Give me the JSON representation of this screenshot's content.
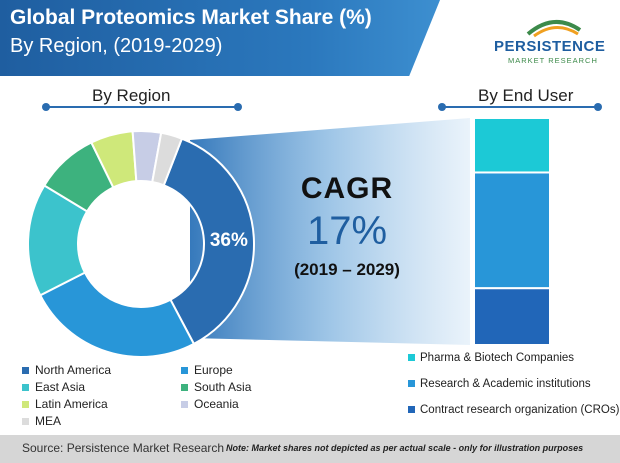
{
  "header": {
    "title": "Global Proteomics Market Share (%)",
    "subtitle": "By Region, (2019-2029)"
  },
  "logo": {
    "name": "PERSISTENCE",
    "sub": "MARKET RESEARCH"
  },
  "sections": {
    "region": "By Region",
    "end_user": "By End User"
  },
  "cagr": {
    "label": "CAGR",
    "value": "17%",
    "period": "(2019 – 2029)"
  },
  "donut_label": "36%",
  "chart_data": [
    {
      "type": "pie",
      "style": "donut",
      "title": "By Region",
      "categories": [
        "North America",
        "Europe",
        "East Asia",
        "South Asia",
        "Latin America",
        "Oceania",
        "MEA"
      ],
      "values": [
        36,
        25,
        16,
        9,
        6,
        4,
        3
      ],
      "colors": [
        "#2a6cb0",
        "#2896d8",
        "#3cc3cc",
        "#3db27e",
        "#cfe87a",
        "#c7cde6",
        "#dcdcdc"
      ],
      "data_labels": {
        "North America": "36%"
      },
      "legend_position": "bottom-left"
    },
    {
      "type": "bar",
      "style": "stacked-100",
      "title": "By End User",
      "categories": [
        "Pharma & Biotech Companies",
        "Research & Academic institutions",
        "Contract research organization (CROs)"
      ],
      "values": [
        24,
        51,
        25
      ],
      "colors": [
        "#1cc9d6",
        "#2896d8",
        "#2166b8"
      ],
      "legend_position": "bottom-right"
    }
  ],
  "footer": {
    "source": "Source: Persistence Market Research",
    "note": "Note: Market shares not depicted as per actual scale - only for illustration purposes"
  }
}
